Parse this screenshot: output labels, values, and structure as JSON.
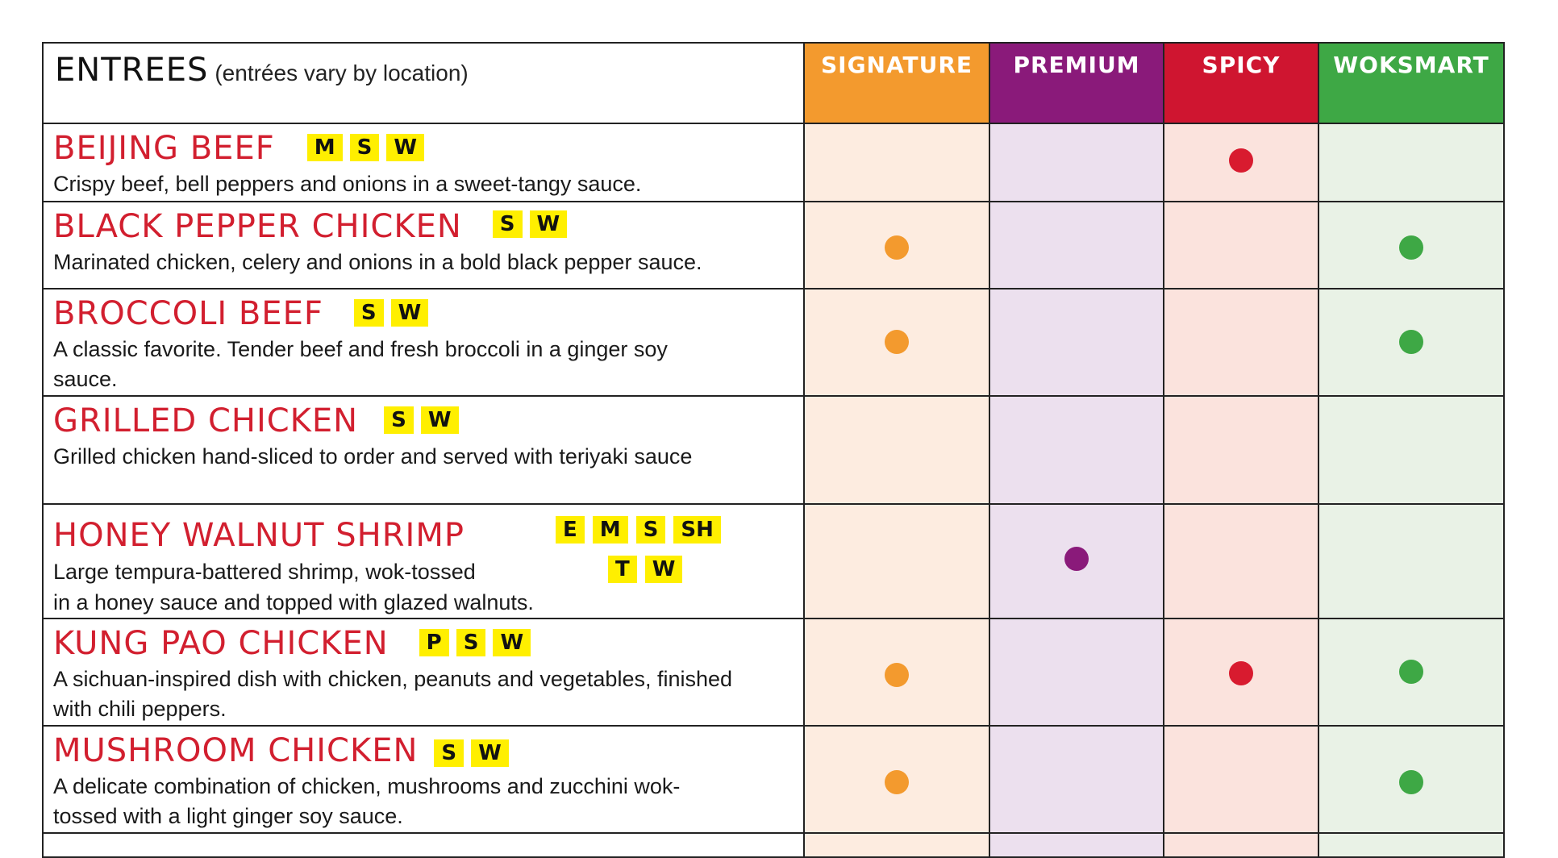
{
  "header": {
    "title": "ENTREES",
    "note": "(entrées vary by location)",
    "categories": [
      {
        "label": "SIGNATURE",
        "color": "#f39a2e",
        "light": "#fdece0"
      },
      {
        "label": "PREMIUM",
        "color": "#8a1a7a",
        "light": "#ece0ee"
      },
      {
        "label": "SPICY",
        "color": "#cf1530",
        "light": "#fbe3dd"
      },
      {
        "label": "WOKSMART",
        "color": "#3ea845",
        "light": "#e9f2e6"
      }
    ]
  },
  "dot_colors": {
    "signature": "#f39a2e",
    "premium": "#8a1a7a",
    "spicy": "#d81b2f",
    "woksmart": "#3ea845"
  },
  "items": [
    {
      "name": "BEIJING BEEF",
      "badges": [
        "M",
        "S",
        "W"
      ],
      "desc_lines": [
        "Crispy beef, bell peppers and onions in a sweet-tangy sauce."
      ],
      "marks": [
        false,
        false,
        true,
        false
      ]
    },
    {
      "name": "BLACK PEPPER CHICKEN",
      "badges": [
        "S",
        "W"
      ],
      "desc_lines": [
        "Marinated chicken, celery and onions in a bold black pepper sauce."
      ],
      "marks": [
        true,
        false,
        false,
        true
      ]
    },
    {
      "name": "BROCCOLI BEEF",
      "badges": [
        "S",
        "W"
      ],
      "desc_lines": [
        "A classic favorite. Tender beef and fresh broccoli in a ginger soy",
        "sauce."
      ],
      "marks": [
        true,
        false,
        false,
        true
      ]
    },
    {
      "name": "GRILLED CHICKEN",
      "badges": [
        "S",
        "W"
      ],
      "desc_lines": [
        "Grilled chicken hand-sliced to order and served with teriyaki sauce"
      ],
      "marks": [
        false,
        false,
        false,
        false
      ]
    },
    {
      "name": "HONEY WALNUT SHRIMP",
      "badges": [
        "E",
        "M",
        "S",
        "SH"
      ],
      "badges_row2": [
        "T",
        "W"
      ],
      "desc_lines": [
        "Large tempura-battered shrimp, wok-tossed",
        "in a honey sauce and topped with glazed walnuts."
      ],
      "marks": [
        false,
        true,
        false,
        false
      ]
    },
    {
      "name": "KUNG PAO CHICKEN",
      "badges": [
        "P",
        "S",
        "W"
      ],
      "desc_lines": [
        "A sichuan-inspired dish with chicken, peanuts and vegetables, finished",
        "with chili peppers."
      ],
      "marks": [
        true,
        false,
        true,
        true
      ]
    },
    {
      "name": "MUSHROOM CHICKEN",
      "badges": [
        "S",
        "W"
      ],
      "desc_lines": [
        "A delicate combination of chicken, mushrooms and zucchini wok-",
        "tossed with a light ginger soy sauce."
      ],
      "marks": [
        true,
        false,
        false,
        true
      ]
    }
  ]
}
